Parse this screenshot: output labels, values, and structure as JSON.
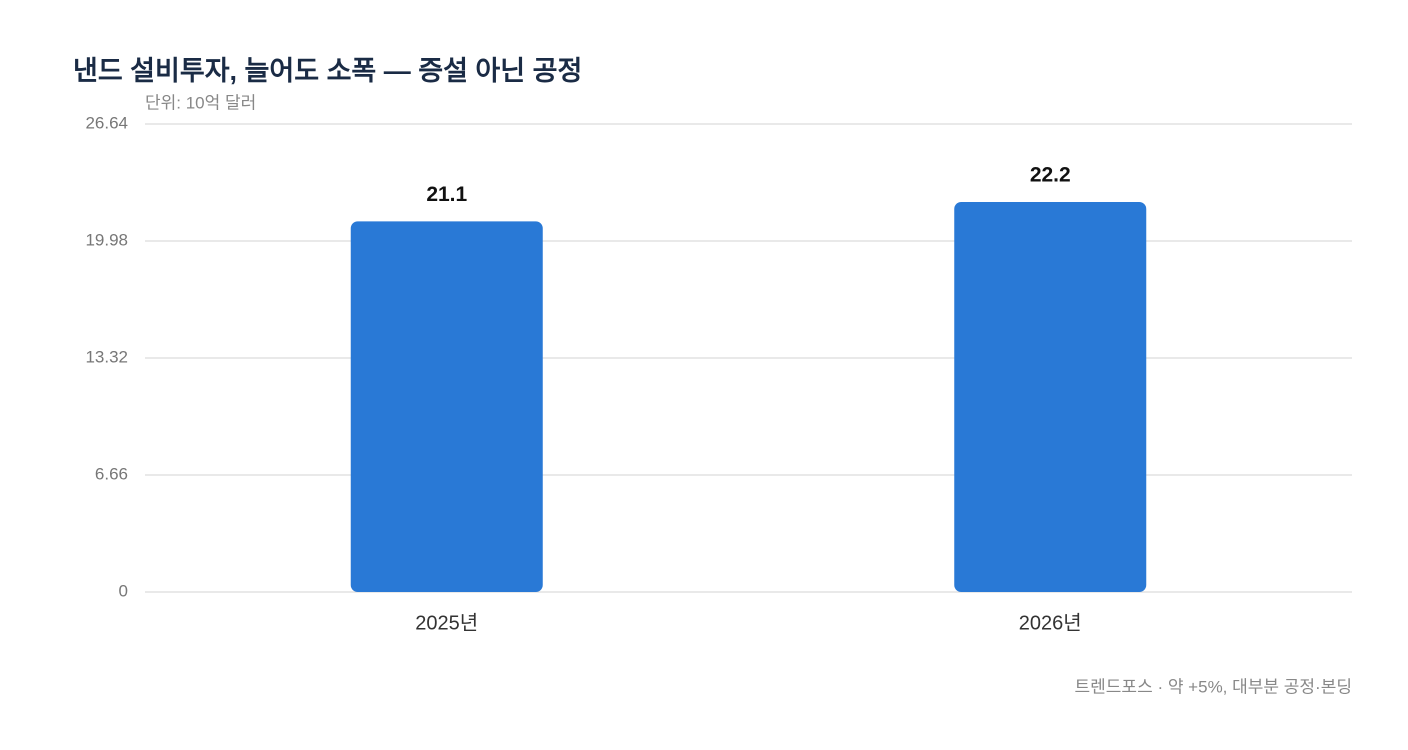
{
  "chart_data": {
    "type": "bar",
    "title": "낸드 설비투자, 늘어도 소폭 — 증설 아닌 공정",
    "subtitle": "단위: 10억 달러",
    "categories": [
      "2025년",
      "2026년"
    ],
    "values": [
      21.1,
      22.2
    ],
    "color": "#2979d6",
    "ylim": [
      0,
      26.64
    ],
    "yticks": [
      0,
      6.66,
      13.32,
      19.98,
      26.64
    ],
    "grid": true,
    "source": "트렌드포스 · 약 +5%, 대부분 공정·본딩"
  }
}
